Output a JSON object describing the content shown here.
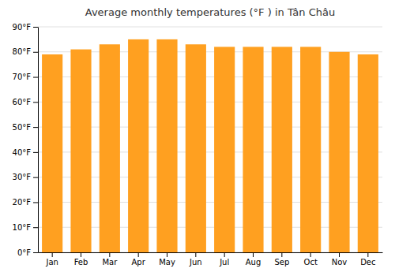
{
  "chart_data": {
    "type": "bar",
    "title": "Average monthly temperatures (°F ) in Tân Châu",
    "categories": [
      "Jan",
      "Feb",
      "Mar",
      "Apr",
      "May",
      "Jun",
      "Jul",
      "Aug",
      "Sep",
      "Oct",
      "Nov",
      "Dec"
    ],
    "values": [
      79,
      81,
      83,
      85,
      85,
      83,
      82,
      82,
      82,
      82,
      80,
      79
    ],
    "color": "#FFA020",
    "ylim": [
      0,
      90
    ],
    "yticks": [
      {
        "value": 0,
        "label": "0°F"
      },
      {
        "value": 10,
        "label": "10°F"
      },
      {
        "value": 20,
        "label": "20°F"
      },
      {
        "value": 30,
        "label": "30°F"
      },
      {
        "value": 40,
        "label": "40°F"
      },
      {
        "value": 50,
        "label": "50°F"
      },
      {
        "value": 60,
        "label": "60°F"
      },
      {
        "value": 70,
        "label": "70°F"
      },
      {
        "value": 80,
        "label": "80°F"
      },
      {
        "value": 90,
        "label": "90°F"
      }
    ],
    "grid": true
  }
}
